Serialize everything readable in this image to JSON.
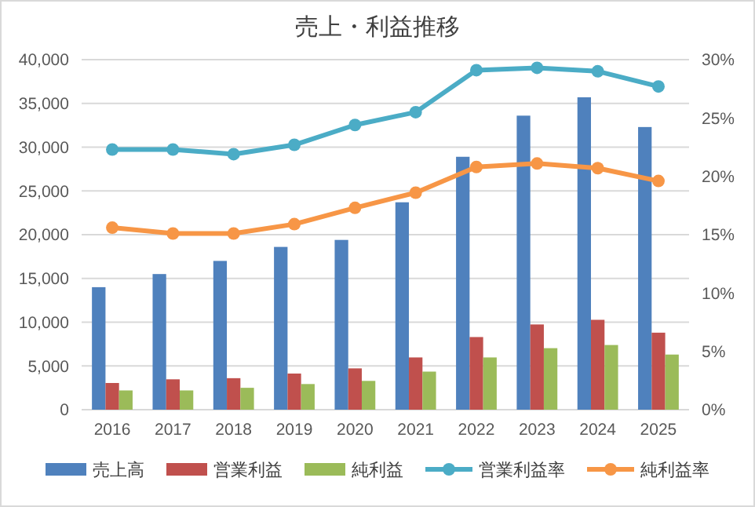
{
  "chart_data": {
    "type": "bar",
    "title": "売上・利益推移",
    "categories": [
      "2016",
      "2017",
      "2018",
      "2019",
      "2020",
      "2021",
      "2022",
      "2023",
      "2024",
      "2025"
    ],
    "series": [
      {
        "name": "売上高",
        "color": "#4f81bd",
        "values": [
          14000,
          15500,
          17000,
          18600,
          19400,
          23700,
          28900,
          33600,
          35700,
          32300
        ]
      },
      {
        "name": "営業利益",
        "color": "#c0504d",
        "values": [
          3050,
          3470,
          3600,
          4130,
          4720,
          5970,
          8300,
          9740,
          10270,
          8800
        ]
      },
      {
        "name": "純利益",
        "color": "#9bbb59",
        "values": [
          2200,
          2200,
          2500,
          2930,
          3290,
          4350,
          5970,
          7030,
          7390,
          6300
        ]
      },
      {
        "name": "営業利益率",
        "color": "#4bacc6",
        "type": "line",
        "axis": "y2",
        "values": [
          22.3,
          22.3,
          21.9,
          22.7,
          24.4,
          25.5,
          29.1,
          29.3,
          29.0,
          27.7
        ]
      },
      {
        "name": "純利益率",
        "color": "#f79646",
        "type": "line",
        "axis": "y2",
        "values": [
          15.6,
          15.1,
          15.1,
          15.9,
          17.3,
          18.6,
          20.8,
          21.1,
          20.7,
          19.6
        ]
      }
    ],
    "ylim": [
      0,
      40000
    ],
    "yticks": [
      0,
      {
        "value": 5000,
        "label": "5,000"
      },
      {
        "value": 10000,
        "label": "10,000"
      },
      {
        "value": 15000,
        "label": "15,000"
      },
      {
        "value": 20000,
        "label": "20,000"
      },
      {
        "value": 25000,
        "label": "25,000"
      },
      {
        "value": 30000,
        "label": "30,000"
      },
      {
        "value": 35000,
        "label": "35,000"
      },
      {
        "value": 40000,
        "label": "40,000"
      }
    ],
    "y2lim": [
      0,
      30
    ],
    "y2ticks": [
      {
        "value": 0,
        "label": "0%"
      },
      {
        "value": 5,
        "label": "5%"
      },
      {
        "value": 10,
        "label": "10%"
      },
      {
        "value": 15,
        "label": "15%"
      },
      {
        "value": 20,
        "label": "20%"
      },
      {
        "value": 25,
        "label": "25%"
      },
      {
        "value": 30,
        "label": "30%"
      }
    ],
    "grid": "y",
    "legend": "bottom",
    "marker": "circle",
    "line_style": "solid"
  }
}
